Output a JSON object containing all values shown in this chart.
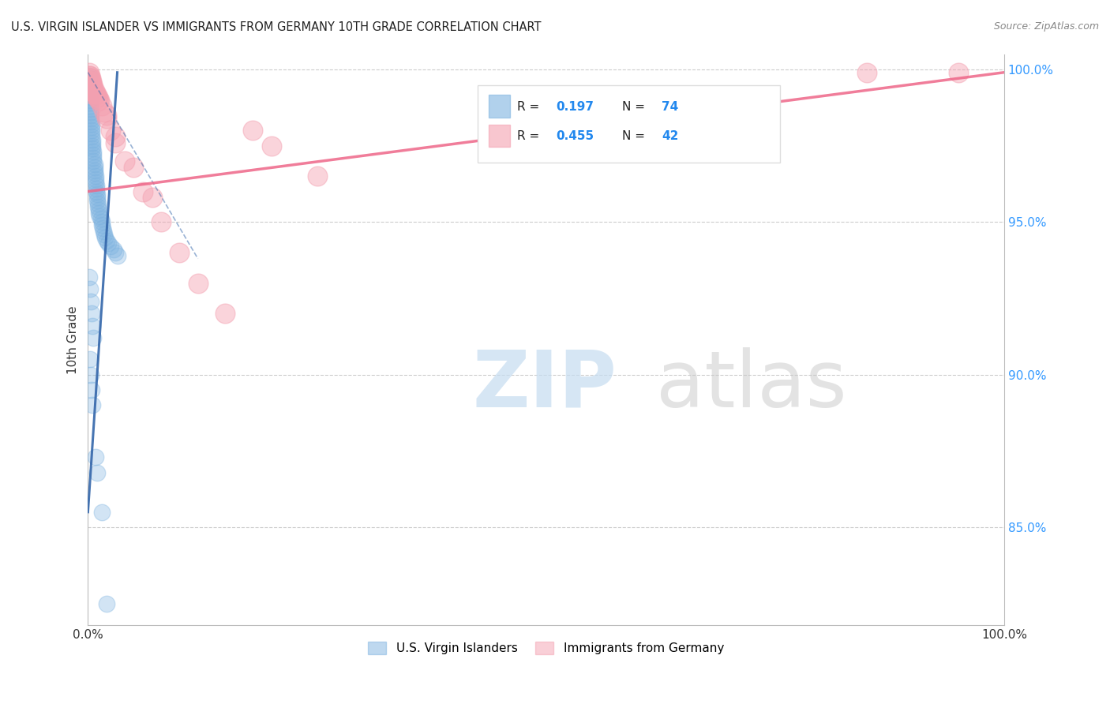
{
  "title": "U.S. VIRGIN ISLANDER VS IMMIGRANTS FROM GERMANY 10TH GRADE CORRELATION CHART",
  "source": "Source: ZipAtlas.com",
  "ylabel": "10th Grade",
  "yaxis_labels": [
    "100.0%",
    "95.0%",
    "90.0%",
    "85.0%"
  ],
  "yaxis_values": [
    1.0,
    0.95,
    0.9,
    0.85
  ],
  "xlim": [
    0.0,
    1.0
  ],
  "ylim": [
    0.818,
    1.005
  ],
  "blue_color": "#7EB3E0",
  "pink_color": "#F4A0B0",
  "blue_line_color": "#3366AA",
  "pink_line_color": "#EE6688",
  "background_color": "#FFFFFF",
  "blue_scatter_x": [
    0.001,
    0.001,
    0.001,
    0.001,
    0.001,
    0.002,
    0.002,
    0.002,
    0.002,
    0.002,
    0.002,
    0.003,
    0.003,
    0.003,
    0.003,
    0.003,
    0.004,
    0.004,
    0.004,
    0.004,
    0.004,
    0.005,
    0.005,
    0.005,
    0.005,
    0.006,
    0.006,
    0.006,
    0.006,
    0.007,
    0.007,
    0.007,
    0.007,
    0.008,
    0.008,
    0.008,
    0.009,
    0.009,
    0.009,
    0.01,
    0.01,
    0.01,
    0.011,
    0.011,
    0.012,
    0.012,
    0.013,
    0.014,
    0.015,
    0.015,
    0.016,
    0.017,
    0.018,
    0.019,
    0.02,
    0.022,
    0.025,
    0.028,
    0.03,
    0.032,
    0.001,
    0.002,
    0.003,
    0.004,
    0.005,
    0.006,
    0.002,
    0.003,
    0.004,
    0.005,
    0.008,
    0.01,
    0.015,
    0.02
  ],
  "blue_scatter_y": [
    0.998,
    0.997,
    0.996,
    0.995,
    0.994,
    0.993,
    0.992,
    0.991,
    0.99,
    0.989,
    0.988,
    0.987,
    0.986,
    0.985,
    0.984,
    0.983,
    0.982,
    0.981,
    0.98,
    0.979,
    0.978,
    0.977,
    0.976,
    0.975,
    0.974,
    0.973,
    0.972,
    0.971,
    0.97,
    0.969,
    0.968,
    0.967,
    0.966,
    0.965,
    0.964,
    0.963,
    0.962,
    0.961,
    0.96,
    0.959,
    0.958,
    0.957,
    0.956,
    0.955,
    0.954,
    0.953,
    0.952,
    0.951,
    0.95,
    0.949,
    0.948,
    0.947,
    0.946,
    0.945,
    0.944,
    0.943,
    0.942,
    0.941,
    0.94,
    0.939,
    0.932,
    0.928,
    0.924,
    0.92,
    0.916,
    0.912,
    0.905,
    0.9,
    0.895,
    0.89,
    0.873,
    0.868,
    0.855,
    0.825
  ],
  "pink_scatter_x": [
    0.001,
    0.001,
    0.002,
    0.002,
    0.003,
    0.003,
    0.004,
    0.004,
    0.005,
    0.005,
    0.006,
    0.006,
    0.007,
    0.008,
    0.009,
    0.01,
    0.011,
    0.012,
    0.013,
    0.015,
    0.018,
    0.02,
    0.025,
    0.03,
    0.04,
    0.06,
    0.08,
    0.1,
    0.12,
    0.15,
    0.18,
    0.2,
    0.25,
    0.02,
    0.03,
    0.05,
    0.07,
    0.002,
    0.003,
    0.004,
    0.85,
    0.95
  ],
  "pink_scatter_y": [
    0.999,
    0.998,
    0.998,
    0.997,
    0.997,
    0.996,
    0.996,
    0.995,
    0.995,
    0.994,
    0.994,
    0.993,
    0.993,
    0.992,
    0.992,
    0.991,
    0.991,
    0.99,
    0.99,
    0.988,
    0.986,
    0.984,
    0.98,
    0.976,
    0.97,
    0.96,
    0.95,
    0.94,
    0.93,
    0.92,
    0.98,
    0.975,
    0.965,
    0.985,
    0.978,
    0.968,
    0.958,
    0.994,
    0.993,
    0.992,
    0.999,
    0.999
  ],
  "blue_line_x0": 0.0,
  "blue_line_y0": 0.855,
  "blue_line_x1": 0.032,
  "blue_line_y1": 0.999,
  "pink_line_x0": 0.0,
  "pink_line_y0": 0.96,
  "pink_line_x1": 1.0,
  "pink_line_y1": 0.999
}
